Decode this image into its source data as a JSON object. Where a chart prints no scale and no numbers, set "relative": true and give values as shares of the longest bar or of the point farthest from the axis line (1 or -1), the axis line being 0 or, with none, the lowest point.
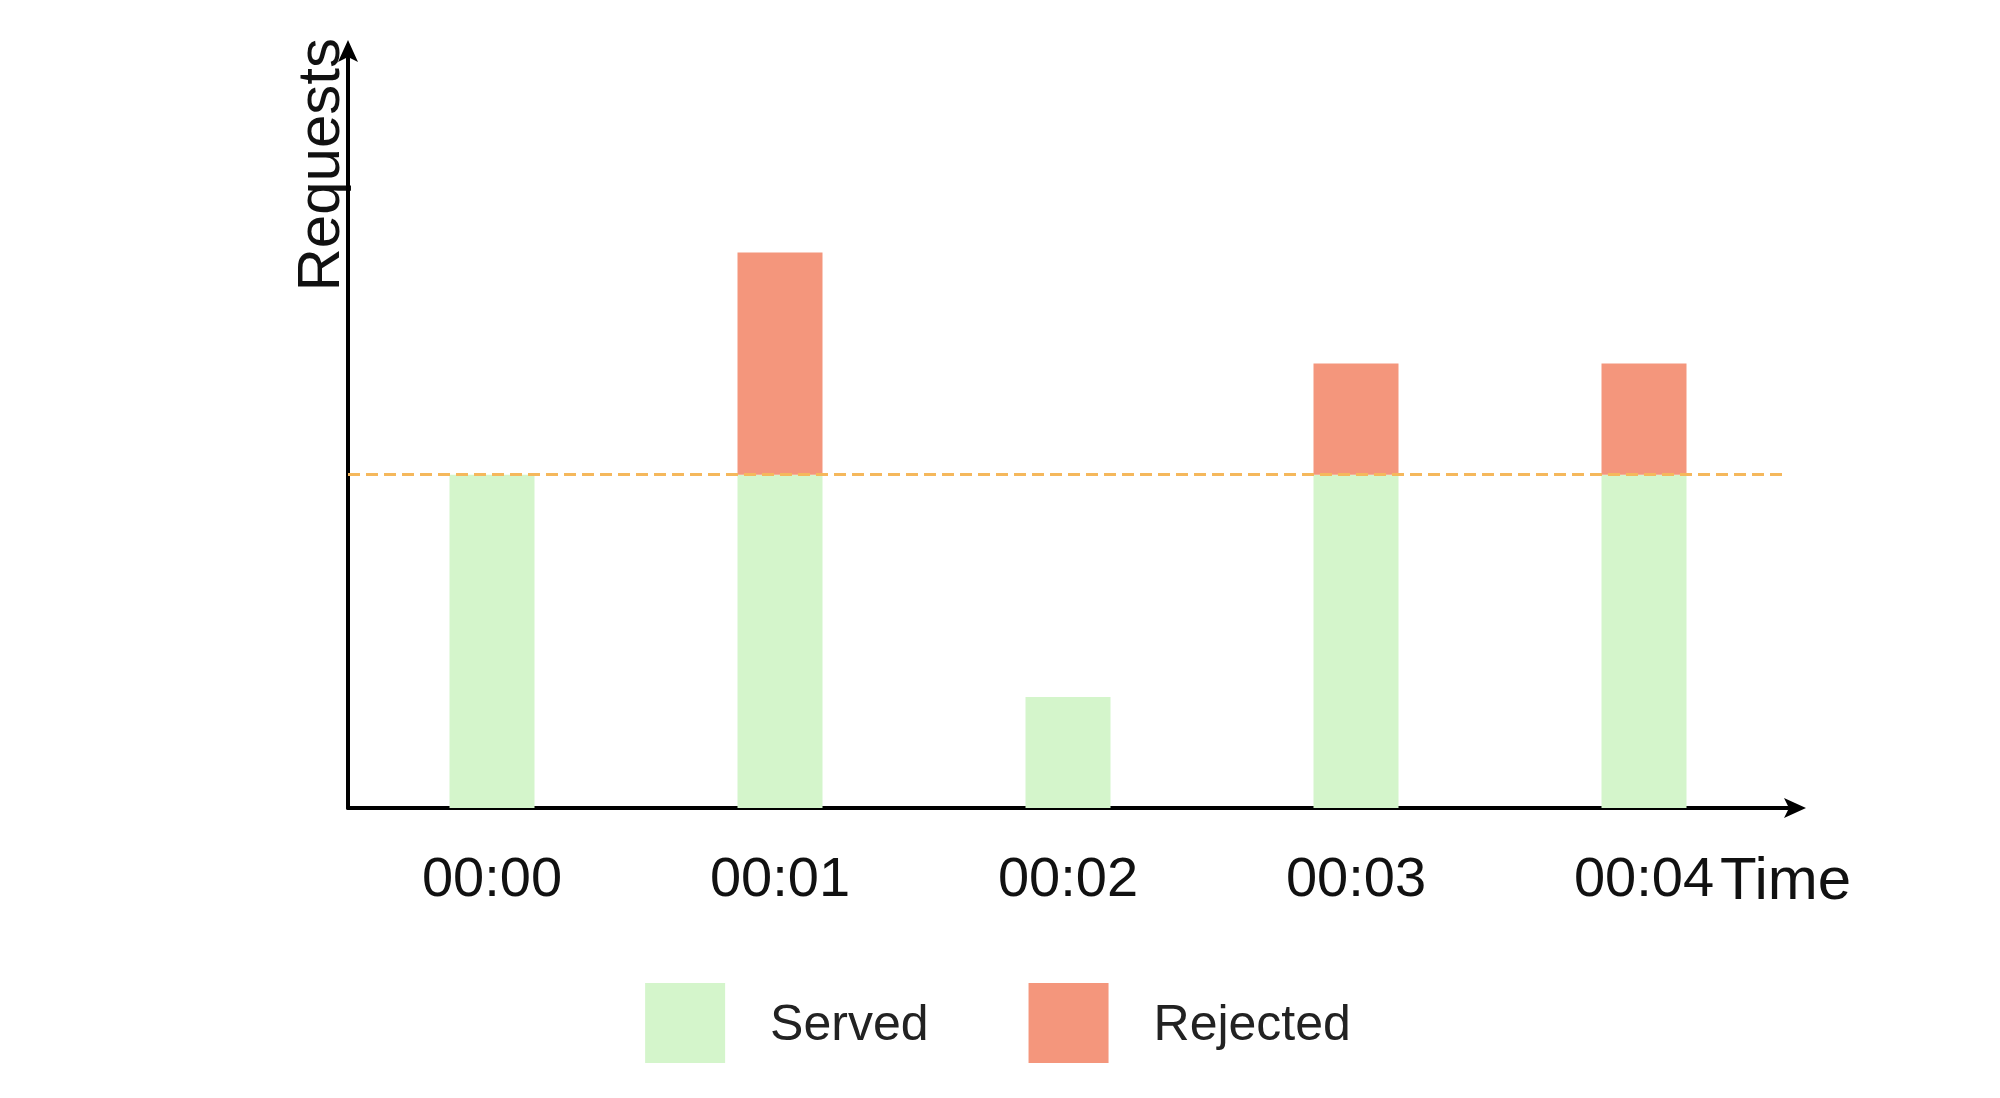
{
  "chart_data": {
    "type": "bar",
    "xlabel": "Time",
    "ylabel": "Requests",
    "relative": true,
    "stacked": true,
    "categories": [
      "00:00",
      "00:01",
      "00:02",
      "00:03",
      "00:04"
    ],
    "series": [
      {
        "name": "Served",
        "color": "#d4f5cb",
        "values": [
          0.6,
          0.6,
          0.2,
          0.6,
          0.6
        ]
      },
      {
        "name": "Rejected",
        "color": "#f4967c",
        "values": [
          0,
          0.4,
          0,
          0.2,
          0.2
        ]
      }
    ],
    "ref_lines": [
      {
        "axis": "y",
        "value": 0.6,
        "label": null,
        "color": "#f5b85c",
        "line_style": "dashed"
      }
    ],
    "grid": false,
    "legend": "bottom"
  }
}
